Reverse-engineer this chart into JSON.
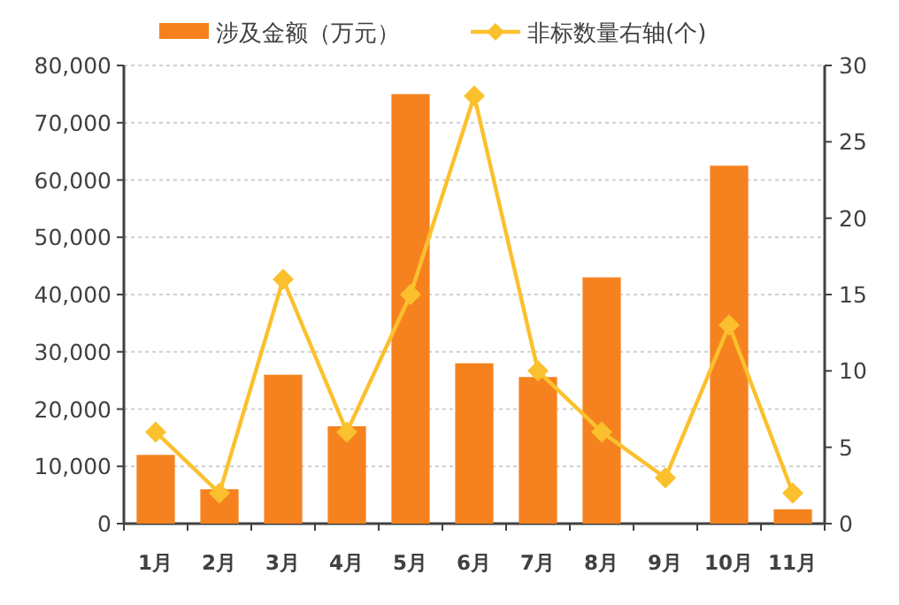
{
  "chart_data": {
    "type": "bar",
    "categories": [
      "1月",
      "2月",
      "3月",
      "4月",
      "5月",
      "6月",
      "7月",
      "8月",
      "9月",
      "10月",
      "11月"
    ],
    "series": [
      {
        "name": "涉及金额（万元）",
        "color": "#f5821f",
        "values": [
          12000,
          6000,
          26000,
          17000,
          75000,
          28000,
          25600,
          43000,
          0,
          62500,
          2500
        ]
      },
      {
        "name": "非标数量右轴(个)",
        "type": "line",
        "axis": "y2",
        "color": "#fbc02d",
        "marker": "diamond",
        "values": [
          6,
          2,
          16,
          6,
          15,
          28,
          10,
          6,
          3,
          13,
          2
        ]
      }
    ],
    "ylim": [
      0,
      80000
    ],
    "yticks": [
      {
        "value": 0,
        "label": "0"
      },
      {
        "value": 10000,
        "label": "10,000"
      },
      {
        "value": 20000,
        "label": "20,000"
      },
      {
        "value": 30000,
        "label": "30,000"
      },
      {
        "value": 40000,
        "label": "40,000"
      },
      {
        "value": 50000,
        "label": "50,000"
      },
      {
        "value": 60000,
        "label": "60,000"
      },
      {
        "value": 70000,
        "label": "70,000"
      },
      {
        "value": 80000,
        "label": "80,000"
      }
    ],
    "y2lim": [
      0,
      30
    ],
    "y2ticks": [
      0,
      5,
      10,
      15,
      20,
      25,
      30
    ],
    "grid": "y",
    "legend": "top"
  }
}
